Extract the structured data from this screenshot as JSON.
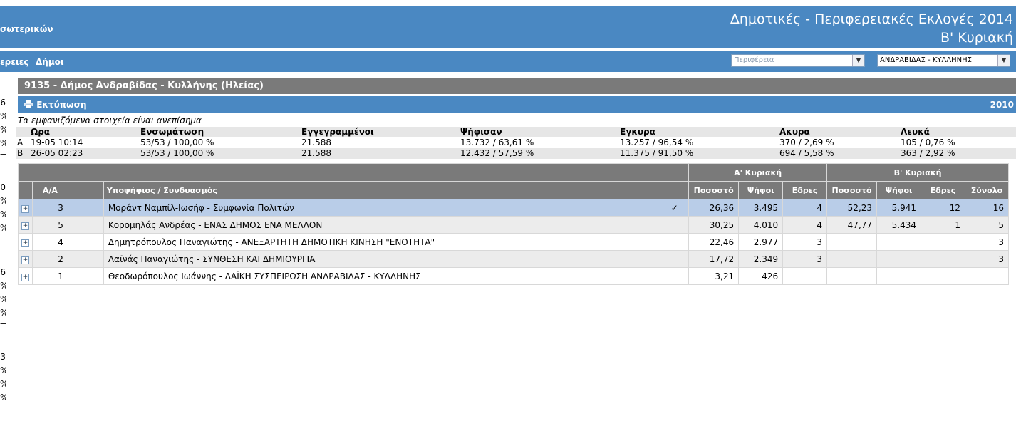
{
  "header": {
    "ministry": "σωτερικών",
    "title_line1": "Δημοτικές - Περιφερειακές Εκλογές 2014",
    "title_line2": "Β' Κυριακή"
  },
  "nav": {
    "links": [
      "ερειες",
      "Δήμοι"
    ],
    "region_select": {
      "placeholder": "Περιφέρεια"
    },
    "municipality_select": {
      "value": "ΑΝΔΡΑΒΙΔΑΣ - ΚΥΛΛΗΝΗΣ"
    }
  },
  "left_column": [
    "6",
    "%",
    "%",
    "%",
    "—",
    "0",
    "%",
    "%",
    "%",
    "—",
    "6",
    "%",
    "%",
    "%",
    "—",
    "3",
    "%",
    "%",
    "%"
  ],
  "municipality": {
    "title": "9135 - Δήμος Ανδραβίδας - Κυλλήνης (Ηλείας)",
    "print_label": "Εκτύπωση",
    "year": "2010",
    "notice": "Τα εμφανιζόμενα στοιχεία είναι ανεπίσημα"
  },
  "summary": {
    "headers": [
      "Ωρα",
      "Ενσωμάτωση",
      "Εγγεγραμμένοι",
      "Ψήφισαν",
      "Εγκυρα",
      "Ακυρα",
      "Λευκά"
    ],
    "rows": [
      {
        "round": "A",
        "time": "19-05 10:14",
        "integration": "53/53 / 100,00 %",
        "registered": "21.588",
        "voted": "13.732 / 63,61 %",
        "valid": "13.257 / 96,54 %",
        "invalid": "370 / 2,69 %",
        "blank": "105 / 0,76 %"
      },
      {
        "round": "B",
        "time": "26-05 02:23",
        "integration": "53/53 / 100,00 %",
        "registered": "21.588",
        "voted": "12.432 / 57,59 %",
        "valid": "11.375 / 91,50 %",
        "invalid": "694 / 5,58 %",
        "blank": "363 / 2,92 %"
      }
    ]
  },
  "results": {
    "group_a": "Α' Κυριακή",
    "group_b": "Β' Κυριακή",
    "columns": {
      "aa": "Α/Α",
      "candidate": "Υποψήφιος / Συνδυασμός",
      "a_percent": "Ποσοστό",
      "a_votes": "Ψήφοι",
      "a_seats": "Εδρες",
      "b_percent": "Ποσοστό",
      "b_votes": "Ψήφοι",
      "b_seats": "Εδρες",
      "total": "Σύνολο"
    },
    "rows": [
      {
        "aa": "3",
        "candidate": "Μοράντ Ναμπίλ-Ιωσήφ - Συμφωνία Πολιτών",
        "check": "✓",
        "a_percent": "26,36",
        "a_votes": "3.495",
        "a_seats": "4",
        "b_percent": "52,23",
        "b_votes": "5.941",
        "b_seats": "12",
        "total": "16"
      },
      {
        "aa": "5",
        "candidate": "Κορομηλάς Ανδρέας - ΕΝΑΣ ΔΗΜΟΣ ΕΝΑ ΜΕΛΛΟΝ",
        "check": "",
        "a_percent": "30,25",
        "a_votes": "4.010",
        "a_seats": "4",
        "b_percent": "47,77",
        "b_votes": "5.434",
        "b_seats": "1",
        "total": "5"
      },
      {
        "aa": "4",
        "candidate": "Δημητρόπουλος Παναγιώτης - ΑΝΕΞΑΡΤΗΤΗ ΔΗΜΟΤΙΚΗ ΚΙΝΗΣΗ \"ΕΝΟΤΗΤΑ\"",
        "check": "",
        "a_percent": "22,46",
        "a_votes": "2.977",
        "a_seats": "3",
        "b_percent": "",
        "b_votes": "",
        "b_seats": "",
        "total": "3"
      },
      {
        "aa": "2",
        "candidate": "Λαϊνάς Παναγιώτης - ΣΥΝΘΕΣΗ ΚΑΙ ΔΗΜΙΟΥΡΓΙΑ",
        "check": "",
        "a_percent": "17,72",
        "a_votes": "2.349",
        "a_seats": "3",
        "b_percent": "",
        "b_votes": "",
        "b_seats": "",
        "total": "3"
      },
      {
        "aa": "1",
        "candidate": "Θεοδωρόπουλος Ιωάννης - ΛΑΪΚΗ ΣΥΣΠΕΙΡΩΣΗ ΑΝΔΡΑΒΙΔΑΣ - ΚΥΛΛΗΝΗΣ",
        "check": "",
        "a_percent": "3,21",
        "a_votes": "426",
        "a_seats": "",
        "b_percent": "",
        "b_votes": "",
        "b_seats": "",
        "total": ""
      }
    ]
  }
}
